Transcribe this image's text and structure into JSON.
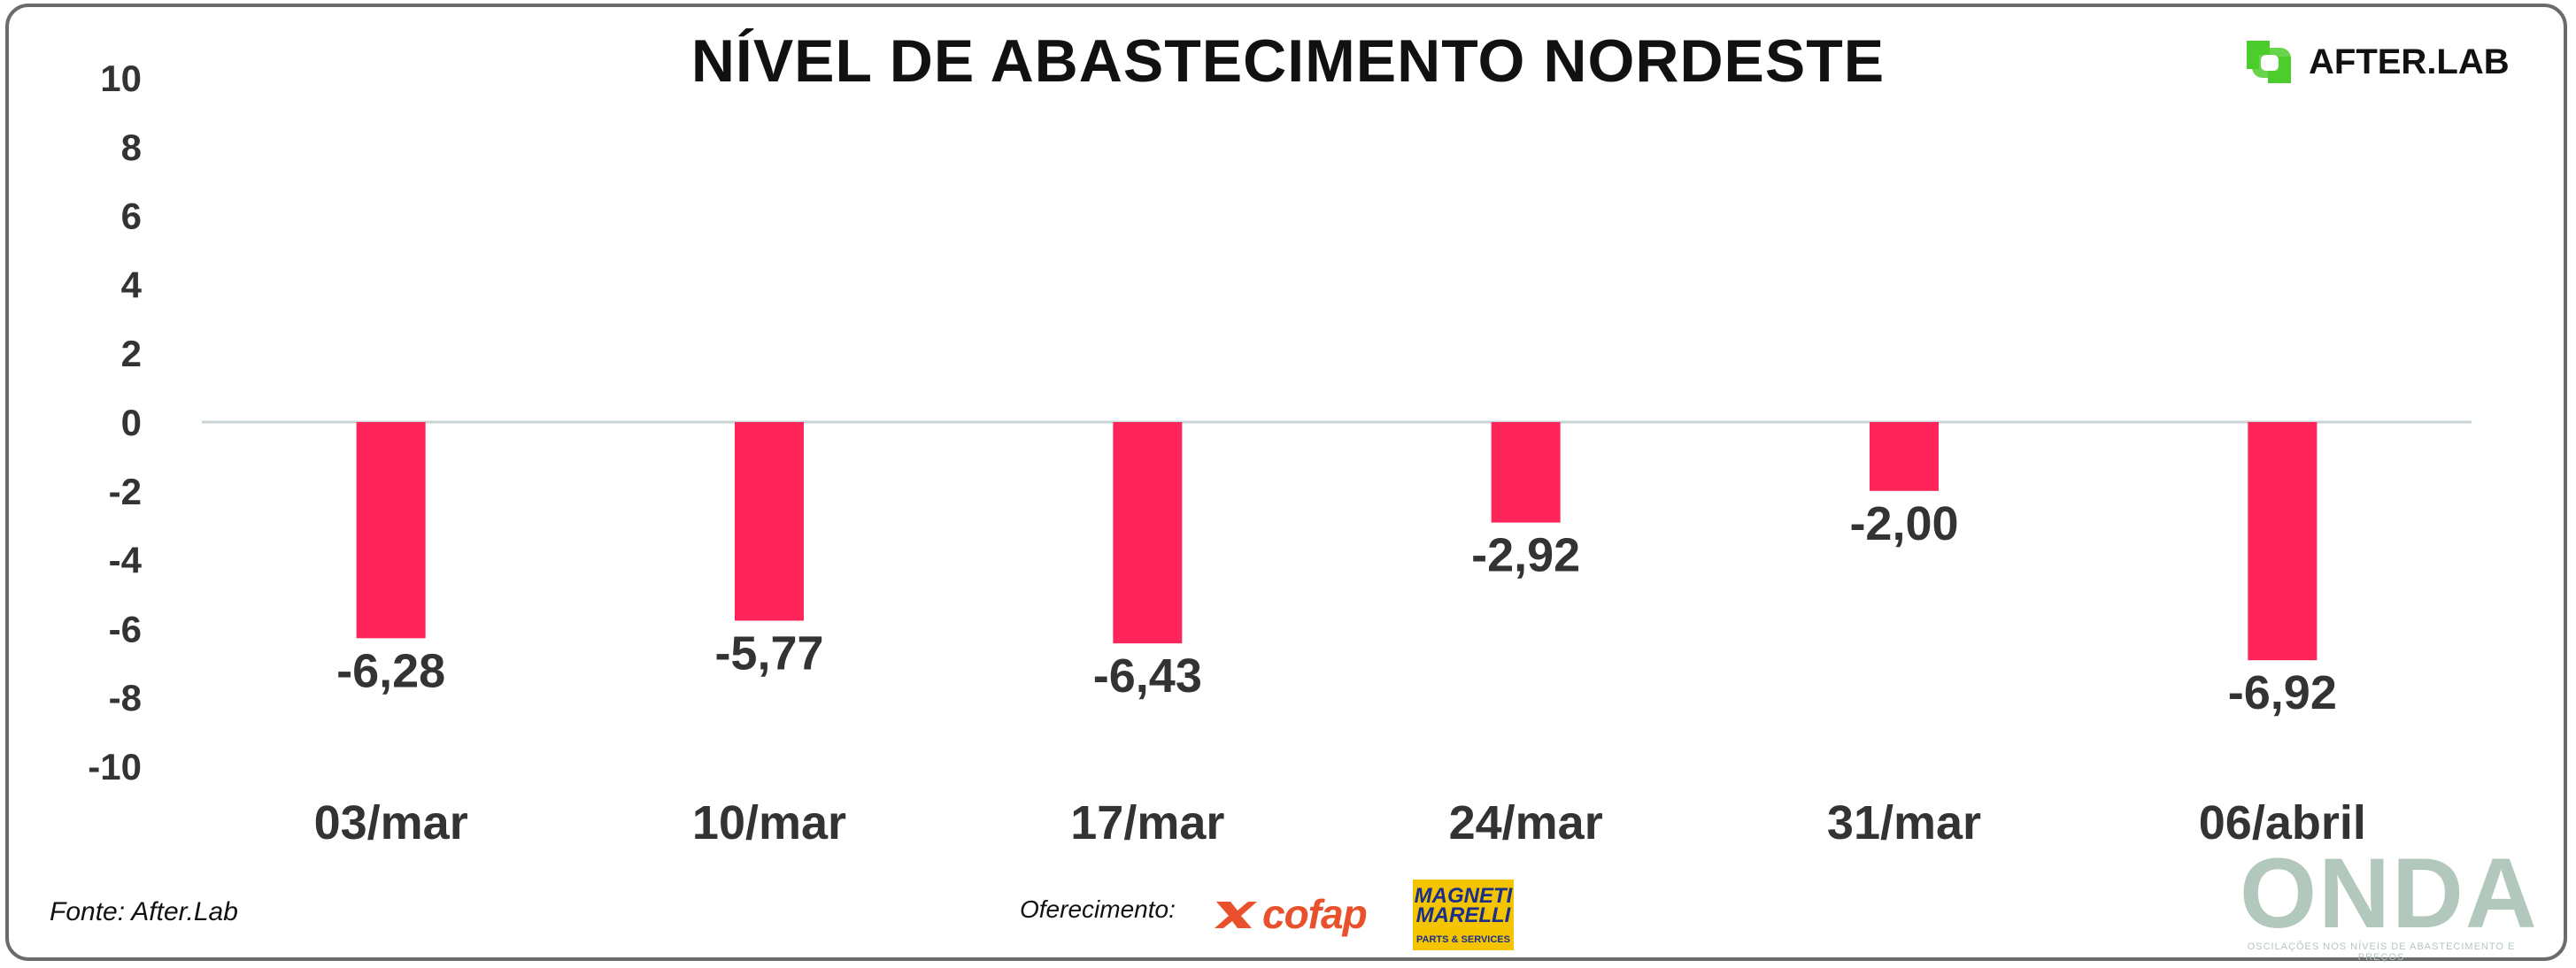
{
  "chart_data": {
    "type": "bar",
    "title": "NÍVEL DE ABASTECIMENTO NORDESTE",
    "categories": [
      "03/mar",
      "10/mar",
      "17/mar",
      "24/mar",
      "31/mar",
      "06/abril"
    ],
    "values": [
      -6.28,
      -5.77,
      -6.43,
      -2.92,
      -2.0,
      -6.92
    ],
    "value_labels": [
      "-6,28",
      "-5,77",
      "-6,43",
      "-2,92",
      "-2,00",
      "-6,92"
    ],
    "xlabel": "",
    "ylabel": "",
    "ylim": [
      -10,
      10
    ],
    "yticks": [
      "10",
      "8",
      "6",
      "4",
      "2",
      "0",
      "-2",
      "-4",
      "-6",
      "-8",
      "-10"
    ],
    "grid": false,
    "bar_color": "#ff2459"
  },
  "brand": {
    "logo_text": "AFTER.LAB",
    "logo_color": "#4ccc2c",
    "icon": "afterlab-logo-icon"
  },
  "footer": {
    "source": "Fonte: After.Lab",
    "offer_label": "Oferecimento:",
    "sponsor_cofap": "cofap",
    "sponsor_magneti_main": "MAGNETI MARELLI",
    "sponsor_magneti_sub": "PARTS & SERVICES",
    "onda_word": "ONDA",
    "onda_sub": "OSCILAÇÕES NOS NÍVEIS DE ABASTECIMENTO E PREÇOS"
  }
}
